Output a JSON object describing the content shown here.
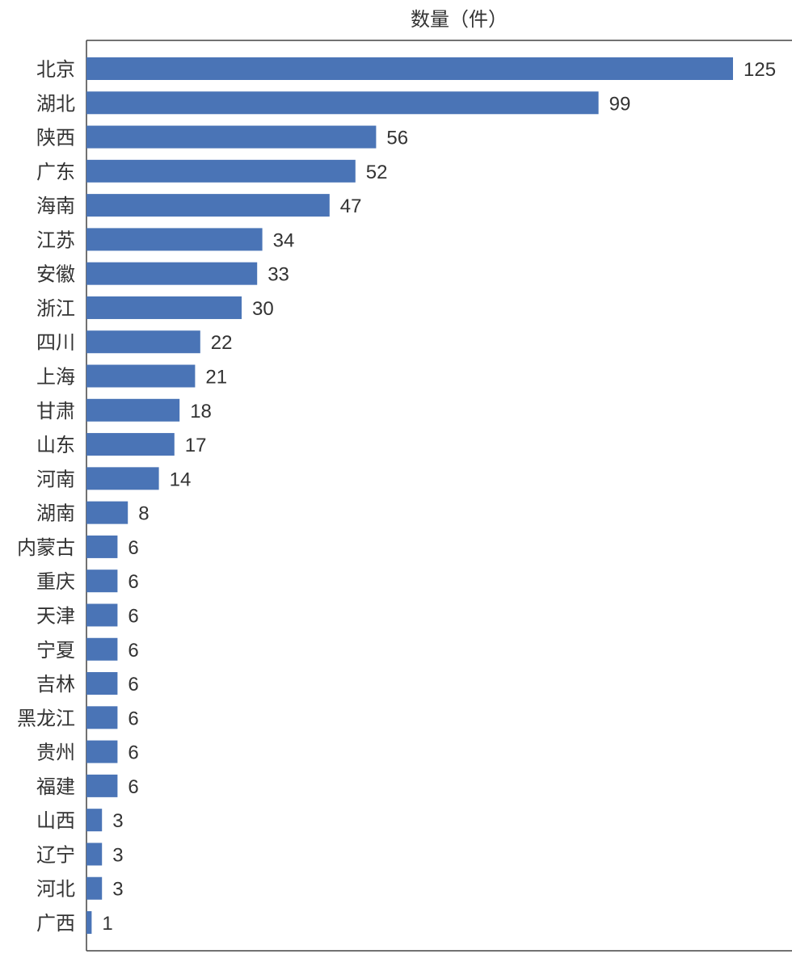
{
  "chart_data": {
    "type": "bar",
    "orientation": "horizontal",
    "title": "数量（件）",
    "xlabel": "",
    "ylabel": "",
    "xlim": [
      0,
      125
    ],
    "grid": false,
    "color": "#4a74b6",
    "categories": [
      "北京",
      "湖北",
      "陕西",
      "广东",
      "海南",
      "江苏",
      "安徽",
      "浙江",
      "四川",
      "上海",
      "甘肃",
      "山东",
      "河南",
      "湖南",
      "内蒙古",
      "重庆",
      "天津",
      "宁夏",
      "吉林",
      "黑龙江",
      "贵州",
      "福建",
      "山西",
      "辽宁",
      "河北",
      "广西"
    ],
    "values": [
      125,
      99,
      56,
      52,
      47,
      34,
      33,
      30,
      22,
      21,
      18,
      17,
      14,
      8,
      6,
      6,
      6,
      6,
      6,
      6,
      6,
      6,
      3,
      3,
      3,
      1
    ]
  }
}
